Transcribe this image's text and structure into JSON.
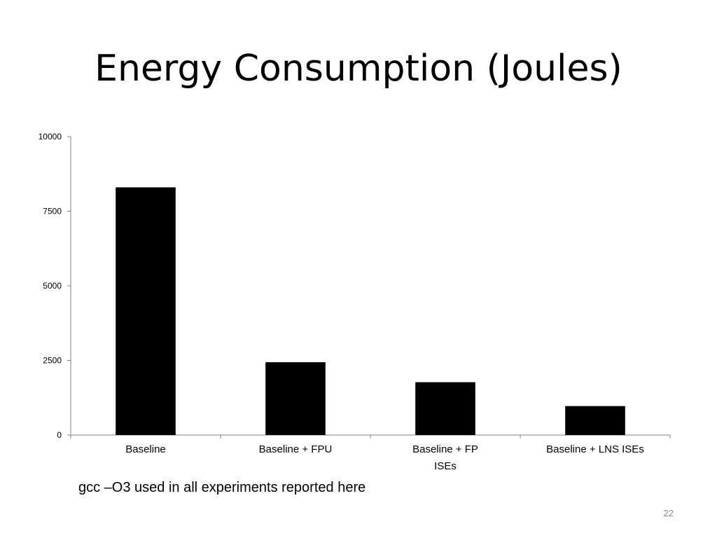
{
  "slide": {
    "title": "Energy Consumption (Joules)",
    "footnote": "gcc –O3 used in all experiments reported here",
    "page_number": "22"
  },
  "chart_data": {
    "type": "bar",
    "categories": [
      [
        "Baseline"
      ],
      [
        "Baseline + FPU"
      ],
      [
        "Baseline + FP",
        "ISEs"
      ],
      [
        "Baseline + LNS ISEs"
      ]
    ],
    "values": [
      8300,
      2440,
      1770,
      970
    ],
    "yticks": [
      0,
      2500,
      5000,
      7500,
      10000
    ],
    "ylim": [
      0,
      10000
    ],
    "bar_color": "#000000",
    "grid": false,
    "legend": "none"
  }
}
